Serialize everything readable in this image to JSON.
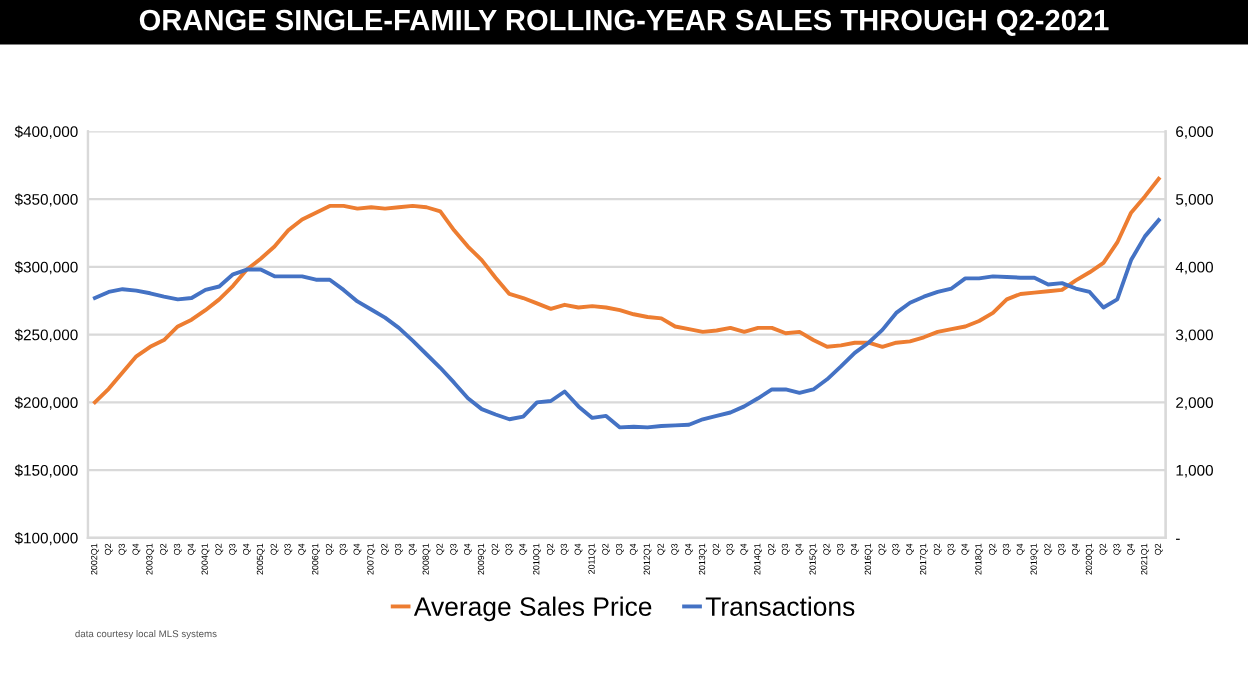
{
  "chart_data": {
    "type": "line",
    "title": "ORANGE SINGLE-FAMILY ROLLING-YEAR SALES THROUGH Q2-2021",
    "categories": [
      "2002Q1",
      "Q2",
      "Q3",
      "Q4",
      "2003Q1",
      "Q2",
      "Q3",
      "Q4",
      "2004Q1",
      "Q2",
      "Q3",
      "Q4",
      "2005Q1",
      "Q2",
      "Q3",
      "Q4",
      "2006Q1",
      "Q2",
      "Q3",
      "Q4",
      "2007Q1",
      "Q2",
      "Q3",
      "Q4",
      "2008Q1",
      "Q2",
      "Q3",
      "Q4",
      "2009Q1",
      "Q2",
      "Q3",
      "Q4",
      "2010Q1",
      "Q2",
      "Q3",
      "Q4",
      "2011Q1",
      "Q2",
      "Q3",
      "Q4",
      "2012Q1",
      "Q2",
      "Q3",
      "Q4",
      "2013Q1",
      "Q2",
      "Q3",
      "Q4",
      "2014Q1",
      "Q2",
      "Q3",
      "Q4",
      "2015Q1",
      "Q2",
      "Q3",
      "Q4",
      "2016Q1",
      "Q2",
      "Q3",
      "Q4",
      "2017Q1",
      "Q2",
      "Q3",
      "Q4",
      "2018Q1",
      "Q2",
      "Q3",
      "Q4",
      "2019Q1",
      "Q2",
      "Q3",
      "Q4",
      "2020Q1",
      "Q2",
      "Q3",
      "Q4",
      "2021Q1",
      "Q2"
    ],
    "series": [
      {
        "name": "Average Sales Price",
        "color": "#ed7d31",
        "values": [
          200000,
          210000,
          222000,
          234000,
          241000,
          246000,
          256000,
          261000,
          268000,
          276000,
          286000,
          298000,
          306000,
          315000,
          327000,
          335000,
          340000,
          345000,
          345000,
          343000,
          344000,
          343000,
          344000,
          345000,
          344000,
          341000,
          327000,
          315000,
          305000,
          292000,
          280000,
          277000,
          273000,
          269000,
          272000,
          270000,
          271000,
          270000,
          268000,
          265000,
          263000,
          262000,
          256000,
          254000,
          252000,
          253000,
          255000,
          252000,
          255000,
          255000,
          251000,
          252000,
          246000,
          241000,
          242000,
          244000,
          244000,
          241000,
          244000,
          245000,
          248000,
          252000,
          254000,
          256000,
          260000,
          266000,
          276000,
          280000,
          281000,
          282000,
          283000,
          290000,
          296000,
          303000,
          318000,
          340000,
          352000,
          365000
        ]
      },
      {
        "name": "Transactions",
        "color": "#4472c4",
        "axis": "y2",
        "values": [
          3540,
          3630,
          3670,
          3650,
          3610,
          3560,
          3520,
          3540,
          3660,
          3710,
          3890,
          3960,
          3960,
          3860,
          3860,
          3860,
          3810,
          3810,
          3660,
          3490,
          3370,
          3250,
          3100,
          2910,
          2710,
          2510,
          2290,
          2060,
          1900,
          1820,
          1750,
          1790,
          2000,
          2020,
          2160,
          1940,
          1770,
          1800,
          1630,
          1640,
          1630,
          1650,
          1660,
          1670,
          1750,
          1800,
          1850,
          1940,
          2060,
          2190,
          2190,
          2140,
          2190,
          2340,
          2530,
          2730,
          2880,
          3070,
          3320,
          3470,
          3560,
          3630,
          3680,
          3830,
          3830,
          3860,
          3850,
          3840,
          3840,
          3740,
          3760,
          3680,
          3630,
          3400,
          3520,
          4100,
          4450,
          4690
        ]
      }
    ],
    "ylim": [
      100000,
      400000
    ],
    "yticks": [
      {
        "value": 100000,
        "label": "$100,000"
      },
      {
        "value": 150000,
        "label": "$150,000"
      },
      {
        "value": 200000,
        "label": "$200,000"
      },
      {
        "value": 250000,
        "label": "$250,000"
      },
      {
        "value": 300000,
        "label": "$300,000"
      },
      {
        "value": 350000,
        "label": "$350,000"
      },
      {
        "value": 400000,
        "label": "$400,000"
      }
    ],
    "y2lim": [
      0,
      6000
    ],
    "y2ticks": [
      {
        "value": 0,
        "label": "-"
      },
      {
        "value": 1000,
        "label": "1,000"
      },
      {
        "value": 2000,
        "label": "2,000"
      },
      {
        "value": 3000,
        "label": "3,000"
      },
      {
        "value": 4000,
        "label": "4,000"
      },
      {
        "value": 5000,
        "label": "5,000"
      },
      {
        "value": 6000,
        "label": "6,000"
      }
    ],
    "grid": "y",
    "legend": "bottom",
    "marker": "none",
    "line_style": "solid",
    "annotations": [
      "data courtesy local MLS systems"
    ]
  }
}
